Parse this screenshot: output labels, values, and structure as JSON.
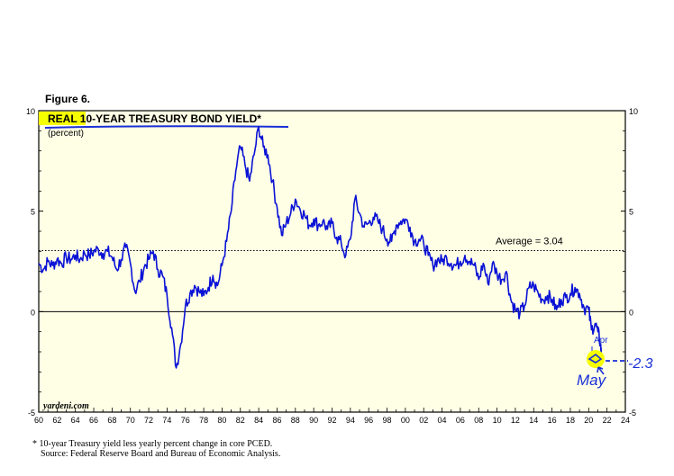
{
  "figure_label": "Figure 6.",
  "footnote": "*   10-year Treasury yield less yearly percent change in core PCED.",
  "source": "Source: Federal Reserve Board and Bureau of Economic Analysis.",
  "annotations": {
    "average": "Average = 3.04",
    "apr": "Apr",
    "may_value": "-2.3",
    "may_label": "May",
    "watermark": "yardeni.com"
  },
  "colors": {
    "plot_background": "#ffffe6",
    "series": "#0a12d6",
    "highlight": "#f6ff00",
    "handwriting": "#1a2fd8"
  },
  "chart_data": {
    "type": "line",
    "title": "REAL 10-YEAR TREASURY BOND YIELD*",
    "subtitle": "(percent)",
    "xlabel": "",
    "ylabel": "",
    "xlim": [
      1960,
      2024
    ],
    "ylim": [
      -5,
      10
    ],
    "y_ticks": [
      "10",
      "5",
      "0",
      "-5"
    ],
    "x_tick_labels": [
      "60",
      "62",
      "64",
      "66",
      "68",
      "70",
      "72",
      "74",
      "76",
      "78",
      "80",
      "82",
      "84",
      "86",
      "88",
      "90",
      "92",
      "94",
      "96",
      "98",
      "00",
      "02",
      "04",
      "06",
      "08",
      "10",
      "12",
      "14",
      "16",
      "18",
      "20",
      "22",
      "24"
    ],
    "average_line": 3.04,
    "grid": false,
    "series": [
      {
        "values": [
          [
            1960.0,
            2.4
          ],
          [
            1960.5,
            2.1
          ],
          [
            1961.0,
            2.5
          ],
          [
            1961.5,
            2.3
          ],
          [
            1962.0,
            2.6
          ],
          [
            1962.5,
            2.4
          ],
          [
            1963.0,
            2.7
          ],
          [
            1963.5,
            2.6
          ],
          [
            1964.0,
            2.8
          ],
          [
            1964.5,
            2.6
          ],
          [
            1965.0,
            2.9
          ],
          [
            1965.5,
            2.8
          ],
          [
            1966.0,
            3.0
          ],
          [
            1966.5,
            3.1
          ],
          [
            1967.0,
            2.9
          ],
          [
            1967.5,
            3.0
          ],
          [
            1968.0,
            2.7
          ],
          [
            1968.5,
            2.1
          ],
          [
            1969.0,
            2.6
          ],
          [
            1969.5,
            3.2
          ],
          [
            1970.0,
            2.4
          ],
          [
            1970.5,
            1.0
          ],
          [
            1971.0,
            1.5
          ],
          [
            1971.5,
            2.2
          ],
          [
            1972.0,
            2.6
          ],
          [
            1972.5,
            3.0
          ],
          [
            1973.0,
            2.1
          ],
          [
            1973.5,
            1.8
          ],
          [
            1974.0,
            0.8
          ],
          [
            1974.5,
            -0.8
          ],
          [
            1975.0,
            -2.8
          ],
          [
            1975.5,
            -1.6
          ],
          [
            1976.0,
            0.3
          ],
          [
            1976.5,
            0.9
          ],
          [
            1977.0,
            1.3
          ],
          [
            1977.5,
            1.0
          ],
          [
            1978.0,
            0.8
          ],
          [
            1978.5,
            1.2
          ],
          [
            1979.0,
            1.8
          ],
          [
            1979.5,
            1.3
          ],
          [
            1980.0,
            2.3
          ],
          [
            1980.5,
            3.5
          ],
          [
            1981.0,
            5.0
          ],
          [
            1981.5,
            7.0
          ],
          [
            1982.0,
            8.2
          ],
          [
            1982.5,
            7.3
          ],
          [
            1983.0,
            6.5
          ],
          [
            1983.5,
            7.8
          ],
          [
            1984.0,
            9.2
          ],
          [
            1984.5,
            8.2
          ],
          [
            1985.0,
            7.8
          ],
          [
            1985.5,
            6.5
          ],
          [
            1986.0,
            5.2
          ],
          [
            1986.5,
            3.8
          ],
          [
            1987.0,
            4.4
          ],
          [
            1987.5,
            4.9
          ],
          [
            1988.0,
            5.6
          ],
          [
            1988.5,
            5.1
          ],
          [
            1989.0,
            4.8
          ],
          [
            1989.5,
            4.3
          ],
          [
            1990.0,
            4.6
          ],
          [
            1990.5,
            4.3
          ],
          [
            1991.0,
            4.5
          ],
          [
            1991.5,
            4.1
          ],
          [
            1992.0,
            4.4
          ],
          [
            1992.5,
            3.7
          ],
          [
            1993.0,
            3.4
          ],
          [
            1993.5,
            2.8
          ],
          [
            1994.0,
            3.6
          ],
          [
            1994.5,
            5.6
          ],
          [
            1995.0,
            4.9
          ],
          [
            1995.5,
            4.2
          ],
          [
            1996.0,
            4.4
          ],
          [
            1996.5,
            4.7
          ],
          [
            1997.0,
            4.5
          ],
          [
            1997.5,
            4.1
          ],
          [
            1998.0,
            3.6
          ],
          [
            1998.5,
            3.5
          ],
          [
            1999.0,
            4.3
          ],
          [
            1999.5,
            4.5
          ],
          [
            2000.0,
            4.6
          ],
          [
            2000.5,
            4.2
          ],
          [
            2001.0,
            3.5
          ],
          [
            2001.5,
            3.6
          ],
          [
            2002.0,
            3.4
          ],
          [
            2002.5,
            2.8
          ],
          [
            2003.0,
            2.3
          ],
          [
            2003.5,
            2.6
          ],
          [
            2004.0,
            2.5
          ],
          [
            2004.5,
            2.7
          ],
          [
            2005.0,
            2.4
          ],
          [
            2005.5,
            2.3
          ],
          [
            2006.0,
            2.5
          ],
          [
            2006.5,
            2.8
          ],
          [
            2007.0,
            2.5
          ],
          [
            2007.5,
            2.3
          ],
          [
            2008.0,
            1.6
          ],
          [
            2008.5,
            2.4
          ],
          [
            2009.0,
            1.4
          ],
          [
            2009.5,
            2.4
          ],
          [
            2010.0,
            1.9
          ],
          [
            2010.5,
            1.6
          ],
          [
            2011.0,
            2.0
          ],
          [
            2011.5,
            0.6
          ],
          [
            2012.0,
            0.1
          ],
          [
            2012.5,
            -0.1
          ],
          [
            2013.0,
            0.3
          ],
          [
            2013.5,
            1.2
          ],
          [
            2014.0,
            1.3
          ],
          [
            2014.5,
            0.9
          ],
          [
            2015.0,
            0.6
          ],
          [
            2015.5,
            0.8
          ],
          [
            2016.0,
            0.6
          ],
          [
            2016.5,
            0.1
          ],
          [
            2017.0,
            0.6
          ],
          [
            2017.5,
            0.7
          ],
          [
            2018.0,
            0.9
          ],
          [
            2018.5,
            1.2
          ],
          [
            2019.0,
            0.9
          ],
          [
            2019.5,
            0.2
          ],
          [
            2020.0,
            0.1
          ],
          [
            2020.3,
            -0.9
          ],
          [
            2020.7,
            -0.6
          ],
          [
            2021.0,
            -1.0
          ],
          [
            2021.3,
            -1.6
          ],
          [
            2021.4,
            -2.3
          ]
        ]
      }
    ]
  }
}
